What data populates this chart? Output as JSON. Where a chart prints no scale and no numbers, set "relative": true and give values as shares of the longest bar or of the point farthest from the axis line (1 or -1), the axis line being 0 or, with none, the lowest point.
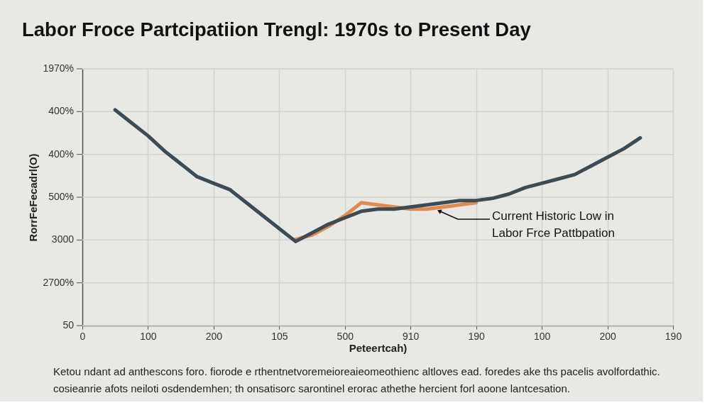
{
  "chart_data": {
    "type": "line",
    "relative": true,
    "title": "Labor Froce Partcipatiion Trengl: 1970s to Present Day",
    "xlabel": "Peteertcah)",
    "ylabel": "RorrFeFecadrl(O)",
    "categories": [
      "0",
      null,
      null,
      null,
      "100",
      null,
      null,
      null,
      "200",
      null,
      null,
      null,
      "105",
      null,
      null,
      null,
      "500",
      null,
      null,
      null,
      "910",
      null,
      null,
      null,
      "190",
      null,
      null,
      null,
      "100",
      null,
      null,
      null,
      "200",
      null,
      null,
      null,
      "190"
    ],
    "series": [
      {
        "color": "#e08c4f",
        "values": [
          null,
          null,
          null,
          null,
          null,
          null,
          null,
          null,
          null,
          null,
          null,
          null,
          null,
          0.4,
          0.42,
          0.46,
          0.51,
          0.57,
          0.56,
          0.55,
          0.54,
          0.54,
          0.55,
          0.56,
          0.57,
          null,
          null,
          null,
          null,
          null,
          null,
          null,
          null,
          null,
          null,
          null,
          null
        ]
      },
      {
        "color": "#3d4b55",
        "values": [
          null,
          null,
          1,
          0.94,
          0.88,
          0.81,
          0.75,
          0.69,
          0.66,
          0.63,
          0.57,
          0.51,
          0.45,
          0.39,
          0.43,
          0.47,
          0.5,
          0.53,
          0.54,
          0.54,
          0.55,
          0.56,
          0.57,
          0.58,
          0.58,
          0.59,
          0.61,
          0.64,
          0.66,
          0.68,
          0.7,
          0.74,
          0.78,
          0.82,
          0.87,
          null,
          null
        ]
      }
    ],
    "grid": true,
    "line_style": "solid",
    "annotations": [
      "1970%",
      "400%",
      "400%",
      "500%",
      "3000",
      "2700%",
      "50",
      "Current Historic Low in\nLabor Frce Pattbpation",
      "Ketou ndant ad anthescons foro. fiorode e rthentnetvoremeioreaieomeothienc altloves ead. foredes ake ths pacelis avolfordathic.\ncosieanrie afots neiloti osdendemhen; th onsatisorc sarontinel erorac athethe hercient forl aoone lantcesation."
    ]
  }
}
